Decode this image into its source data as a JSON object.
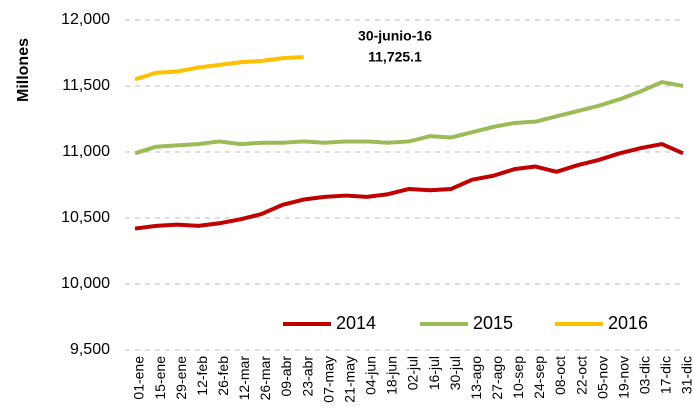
{
  "chart_data": {
    "type": "line",
    "y_label": "Millones",
    "annotation": [
      "30-junio-16",
      "11,725.1"
    ],
    "categories": [
      "01-ene",
      "15-ene",
      "29-ene",
      "12-feb",
      "26-feb",
      "12-mar",
      "26-mar",
      "09-abr",
      "23-abr",
      "07-may",
      "21-may",
      "04-jun",
      "18-jun",
      "02-jul",
      "16-jul",
      "30-jul",
      "13-ago",
      "27-ago",
      "10-sep",
      "24-sep",
      "08-oct",
      "22-oct",
      "05-nov",
      "19-nov",
      "03-dic",
      "17-dic",
      "31-dic"
    ],
    "series": [
      {
        "name": "2014",
        "color": "#c00000",
        "values": [
          10420,
          10440,
          10450,
          10440,
          10460,
          10490,
          10530,
          10600,
          10640,
          10660,
          10670,
          10660,
          10680,
          10720,
          10710,
          10720,
          10790,
          10820,
          10870,
          10890,
          10850,
          10900,
          10940,
          10990,
          11030,
          11060,
          10990
        ]
      },
      {
        "name": "2015",
        "color": "#9bbb59",
        "values": [
          10990,
          11040,
          11050,
          11060,
          11080,
          11060,
          11070,
          11070,
          11080,
          11070,
          11080,
          11080,
          11070,
          11080,
          11120,
          11110,
          11150,
          11190,
          11220,
          11230,
          11270,
          11310,
          11350,
          11400,
          11460,
          11530,
          11500
        ]
      },
      {
        "name": "2016",
        "color": "#ffc000",
        "values": [
          11550,
          11600,
          11610,
          11640,
          11660,
          11680,
          11690,
          11710,
          11720,
          null,
          null,
          null,
          null,
          null,
          null,
          null,
          null,
          null,
          null,
          null,
          null,
          null,
          null,
          null,
          null,
          null,
          null
        ]
      }
    ],
    "ylim": [
      9500,
      12000
    ],
    "yticks": [
      {
        "value": 9500,
        "label": "9,500"
      },
      {
        "value": 10000,
        "label": "10,000"
      },
      {
        "value": 10500,
        "label": "10,500"
      },
      {
        "value": 11000,
        "label": "11,000"
      },
      {
        "value": 11500,
        "label": "11,500"
      },
      {
        "value": 12000,
        "label": "12,000"
      }
    ],
    "grid": true,
    "legend": "lower right"
  }
}
